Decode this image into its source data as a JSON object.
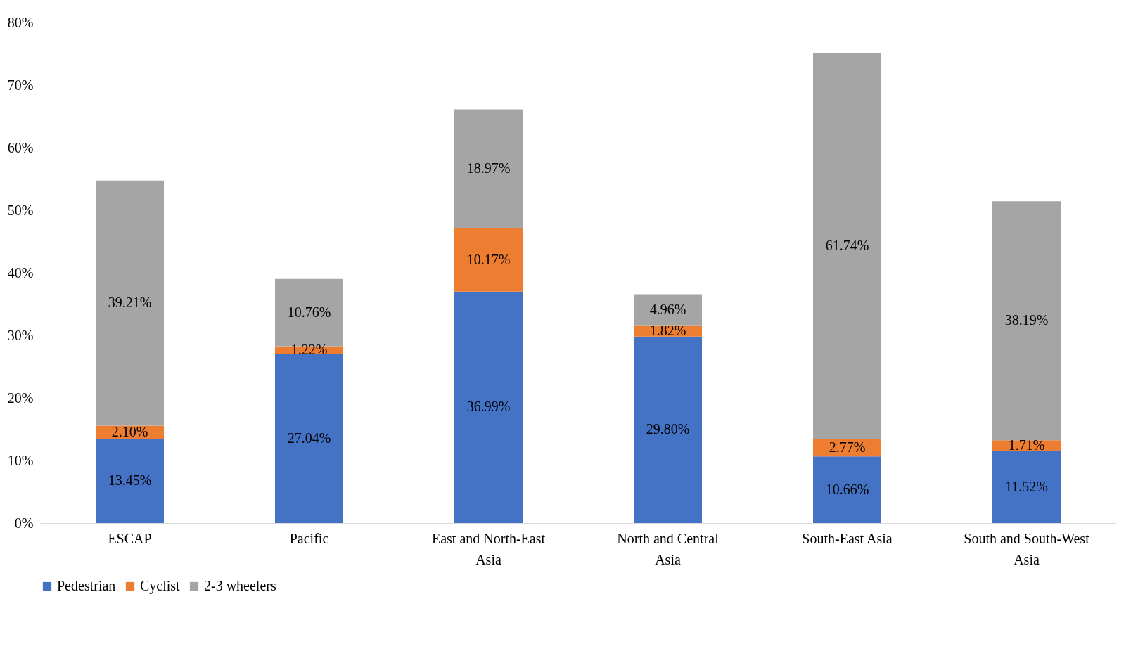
{
  "chart_data": {
    "type": "bar",
    "stacked": true,
    "categories": [
      "ESCAP",
      "Pacific",
      "East and North-East Asia",
      "North and Central Asia",
      "South-East Asia",
      "South and South-West Asia"
    ],
    "series": [
      {
        "name": "Pedestrian",
        "color": "#4472c4",
        "values": [
          13.45,
          27.04,
          36.99,
          29.8,
          10.66,
          11.52
        ],
        "value_labels": [
          "13.45%",
          "27.04%",
          "36.99%",
          "29.80%",
          "10.66%",
          "11.52%"
        ]
      },
      {
        "name": "Cyclist",
        "color": "#ed7d31",
        "values": [
          2.1,
          1.22,
          10.17,
          1.82,
          2.77,
          1.71
        ],
        "value_labels": [
          "2.10%",
          "1.22%",
          "10.17%",
          "1.82%",
          "2.77%",
          "1.71%"
        ]
      },
      {
        "name": "2-3 wheelers",
        "color": "#a5a5a5",
        "values": [
          39.21,
          10.76,
          18.97,
          4.96,
          61.74,
          38.19
        ],
        "value_labels": [
          "39.21%",
          "10.76%",
          "18.97%",
          "4.96%",
          "61.74%",
          "38.19%"
        ]
      }
    ],
    "ylim": [
      0,
      80
    ],
    "yticks": [
      {
        "value": 0,
        "label": "0%"
      },
      {
        "value": 10,
        "label": "10%"
      },
      {
        "value": 20,
        "label": "20%"
      },
      {
        "value": 30,
        "label": "30%"
      },
      {
        "value": 40,
        "label": "40%"
      },
      {
        "value": 50,
        "label": "50%"
      },
      {
        "value": 60,
        "label": "60%"
      },
      {
        "value": 70,
        "label": "70%"
      },
      {
        "value": 80,
        "label": "80%"
      }
    ],
    "grid": false,
    "legend": "bottom"
  }
}
